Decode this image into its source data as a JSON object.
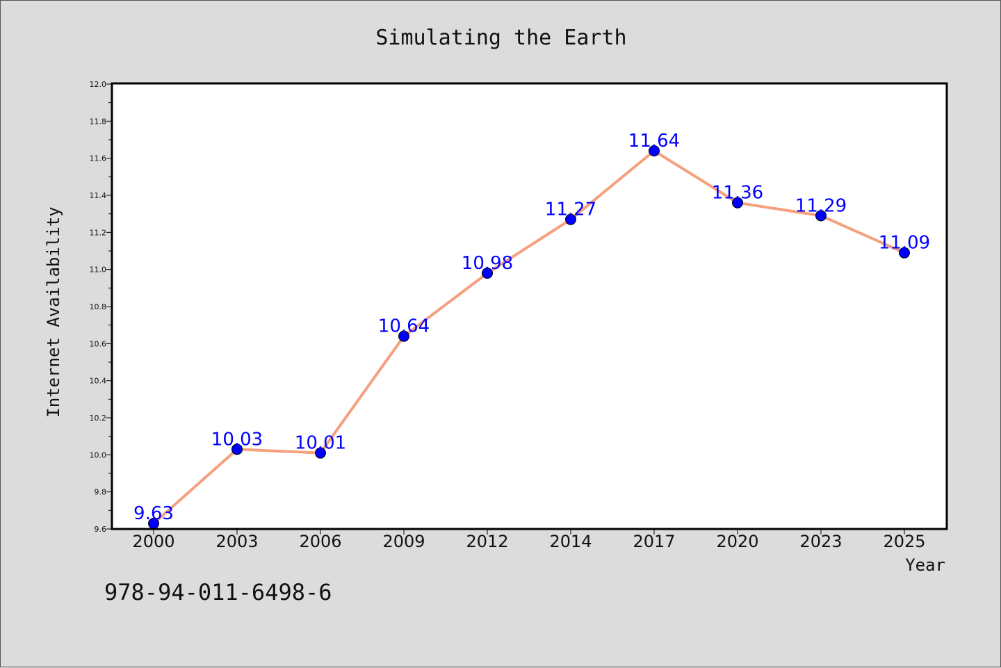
{
  "chart_data": {
    "type": "line",
    "title": "Simulating the Earth",
    "xlabel": "Year",
    "ylabel": "Internet Availability",
    "categories": [
      "2000",
      "2003",
      "2006",
      "2009",
      "2012",
      "2014",
      "2017",
      "2020",
      "2023",
      "2025"
    ],
    "series": [
      {
        "values": [
          9.63,
          10.03,
          10.01,
          10.64,
          10.98,
          11.27,
          11.64,
          11.36,
          11.29,
          11.09
        ]
      }
    ],
    "data_labels": [
      "9.63",
      "10.03",
      "10.01",
      "10.64",
      "10.98",
      "11.27",
      "11.64",
      "11.36",
      "11.29",
      "11.09"
    ],
    "ylim": [
      9.6,
      12.0
    ],
    "yticks": [
      "9.6",
      "9.8",
      "10.0",
      "10.2",
      "10.4",
      "10.6",
      "10.8",
      "11.0",
      "11.2",
      "11.4",
      "11.6",
      "11.8",
      "12.0"
    ],
    "grid": false,
    "line_color": "#f5a07f",
    "marker_color": "#0000ff",
    "label_color": "#0000ff"
  },
  "footer": {
    "isbn": "978-94-011-6498-6"
  }
}
